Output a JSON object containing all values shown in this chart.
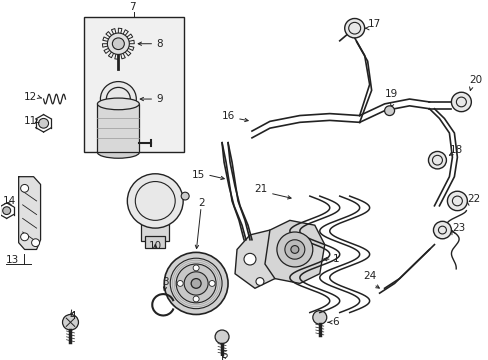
{
  "bg_color": "#ffffff",
  "line_color": "#222222",
  "box_bg": "#eeeeee",
  "figsize": [
    4.89,
    3.6
  ],
  "dpi": 100,
  "label_fontsize": 7.5,
  "label_fontsize_sm": 7.0
}
